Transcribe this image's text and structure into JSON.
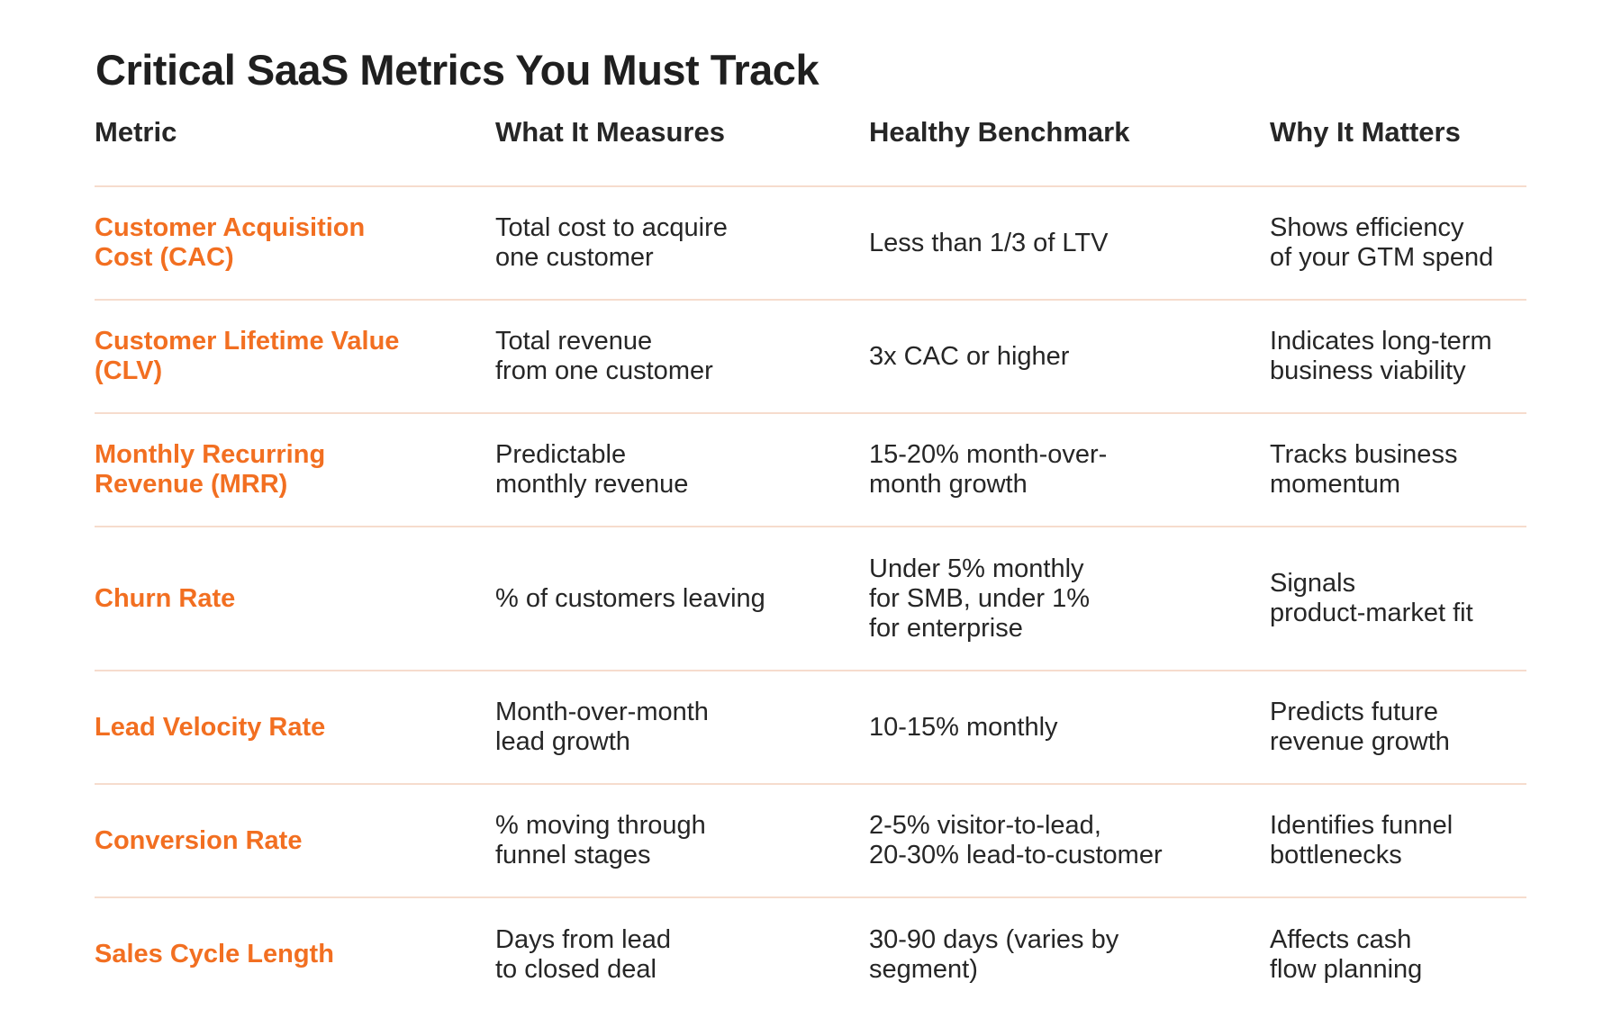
{
  "title": "Critical SaaS Metrics You Must Track",
  "colors": {
    "accent": "#f26f21",
    "text": "#262626",
    "divider": "#f6dccd"
  },
  "columns": [
    "Metric",
    "What It Measures",
    "Healthy Benchmark",
    "Why It Matters"
  ],
  "rows": [
    {
      "metric": "Customer Acquisition\nCost (CAC)",
      "measures": "Total cost to acquire\none customer",
      "benchmark": "Less than 1/3 of LTV",
      "why": "Shows efficiency\nof your GTM spend"
    },
    {
      "metric": "Customer Lifetime Value\n(CLV)",
      "measures": "Total revenue\nfrom one customer",
      "benchmark": "3x CAC or higher",
      "why": "Indicates long-term\nbusiness viability"
    },
    {
      "metric": "Monthly Recurring\nRevenue (MRR)",
      "measures": "Predictable\nmonthly revenue",
      "benchmark": "15-20% month-over-\nmonth growth",
      "why": "Tracks business\nmomentum"
    },
    {
      "metric": "Churn Rate",
      "measures": "% of customers leaving",
      "benchmark": "Under 5% monthly\nfor SMB, under 1%\nfor enterprise",
      "why": "Signals\nproduct-market fit"
    },
    {
      "metric": "Lead Velocity Rate",
      "measures": "Month-over-month\nlead growth",
      "benchmark": "10-15% monthly",
      "why": "Predicts future\nrevenue growth"
    },
    {
      "metric": "Conversion Rate",
      "measures": "% moving through\nfunnel stages",
      "benchmark": "2-5% visitor-to-lead,\n20-30% lead-to-customer",
      "why": "Identifies funnel\nbottlenecks"
    },
    {
      "metric": "Sales Cycle Length",
      "measures": "Days from lead\nto closed deal",
      "benchmark": "30-90 days (varies by\nsegment)",
      "why": "Affects cash\nflow planning"
    }
  ]
}
